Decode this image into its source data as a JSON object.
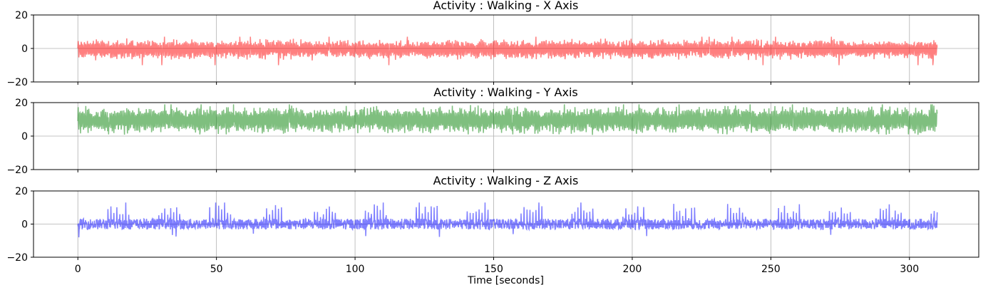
{
  "chart_data": [
    {
      "type": "line",
      "title": "Activity : Walking - X Axis",
      "xlabel": "",
      "ylabel": "",
      "xlim": [
        -16,
        325
      ],
      "ylim": [
        -20,
        20
      ],
      "xticks": [
        0,
        50,
        100,
        150,
        200,
        250,
        300
      ],
      "xtick_labels_visible": false,
      "yticks": [
        -20,
        0,
        20
      ],
      "grid": true,
      "series": [
        {
          "color": "#ff0000",
          "alpha": 0.5,
          "x_start": 0,
          "x_end": 310,
          "baseline": 0,
          "low": -6,
          "high": 5,
          "spike_high": 7,
          "spike_low": -10,
          "pattern": "dense oscillation"
        }
      ]
    },
    {
      "type": "line",
      "title": "Activity : Walking - Y Axis",
      "xlabel": "",
      "ylabel": "",
      "xlim": [
        -16,
        325
      ],
      "ylim": [
        -20,
        20
      ],
      "xticks": [
        0,
        50,
        100,
        150,
        200,
        250,
        300
      ],
      "xtick_labels_visible": false,
      "yticks": [
        -20,
        0,
        20
      ],
      "grid": true,
      "series": [
        {
          "color": "#008000",
          "alpha": 0.5,
          "x_start": 0,
          "x_end": 310,
          "baseline": 9,
          "low": 2,
          "high": 17,
          "spike_high": 19,
          "spike_low": 1,
          "pattern": "dense oscillation"
        }
      ]
    },
    {
      "type": "line",
      "title": "Activity : Walking - Z Axis",
      "xlabel": "Time [seconds]",
      "ylabel": "",
      "xlim": [
        -16,
        325
      ],
      "ylim": [
        -20,
        20
      ],
      "xticks": [
        0,
        50,
        100,
        150,
        200,
        250,
        300
      ],
      "xtick_labels_visible": true,
      "yticks": [
        -20,
        0,
        20
      ],
      "grid": true,
      "series": [
        {
          "color": "#0000ff",
          "alpha": 0.5,
          "x_start": 0,
          "x_end": 310,
          "baseline": 0,
          "low": -5,
          "high": 10,
          "spike_high": 13,
          "spike_low": -8,
          "pattern": "periodic spikes"
        }
      ]
    }
  ]
}
